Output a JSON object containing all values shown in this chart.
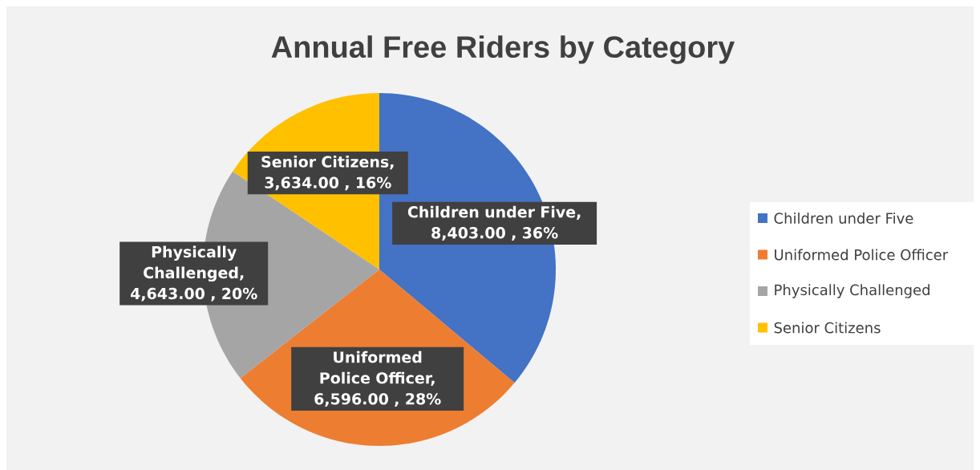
{
  "chart_data": {
    "type": "pie",
    "title": "Annual Free Riders by Category",
    "categories": [
      "Children under Five",
      "Uniformed Police Officer",
      "Physically Challenged",
      "Senior Citizens"
    ],
    "values": [
      8403,
      6596,
      4643,
      3634
    ],
    "colors": [
      "#4472c4",
      "#ed7d31",
      "#a5a5a5",
      "#ffc000"
    ],
    "value_labels": [
      "Children under Five, 8,403.00 , 36%",
      "Uniformed Police Officer, 6,596.00 , 28%",
      "Physically Challenged, 4,643.00 , 20%",
      "Senior Citizens, 3,634.00 , 16%"
    ],
    "legend": "right"
  }
}
